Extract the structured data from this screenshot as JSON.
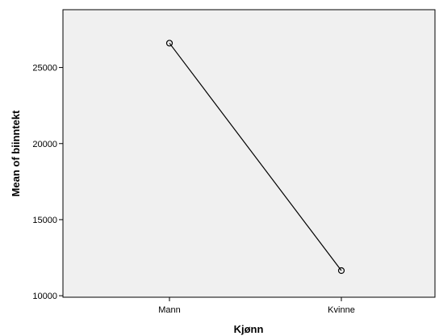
{
  "chart_data": {
    "type": "line",
    "categories": [
      "Mann",
      "Kvinne"
    ],
    "series": [
      {
        "values": [
          26600,
          11650
        ]
      }
    ],
    "xlabel": "Kjønn",
    "ylabel": "Mean of biinntekt",
    "ylim": [
      9900,
      28800
    ],
    "yticks": [
      10000,
      15000,
      20000,
      25000
    ],
    "grid": false,
    "legend": "none",
    "marker": "open-circle",
    "colors": {
      "plot_background": "#f0f0f0",
      "line": "#000000",
      "frame": "#000000"
    }
  }
}
